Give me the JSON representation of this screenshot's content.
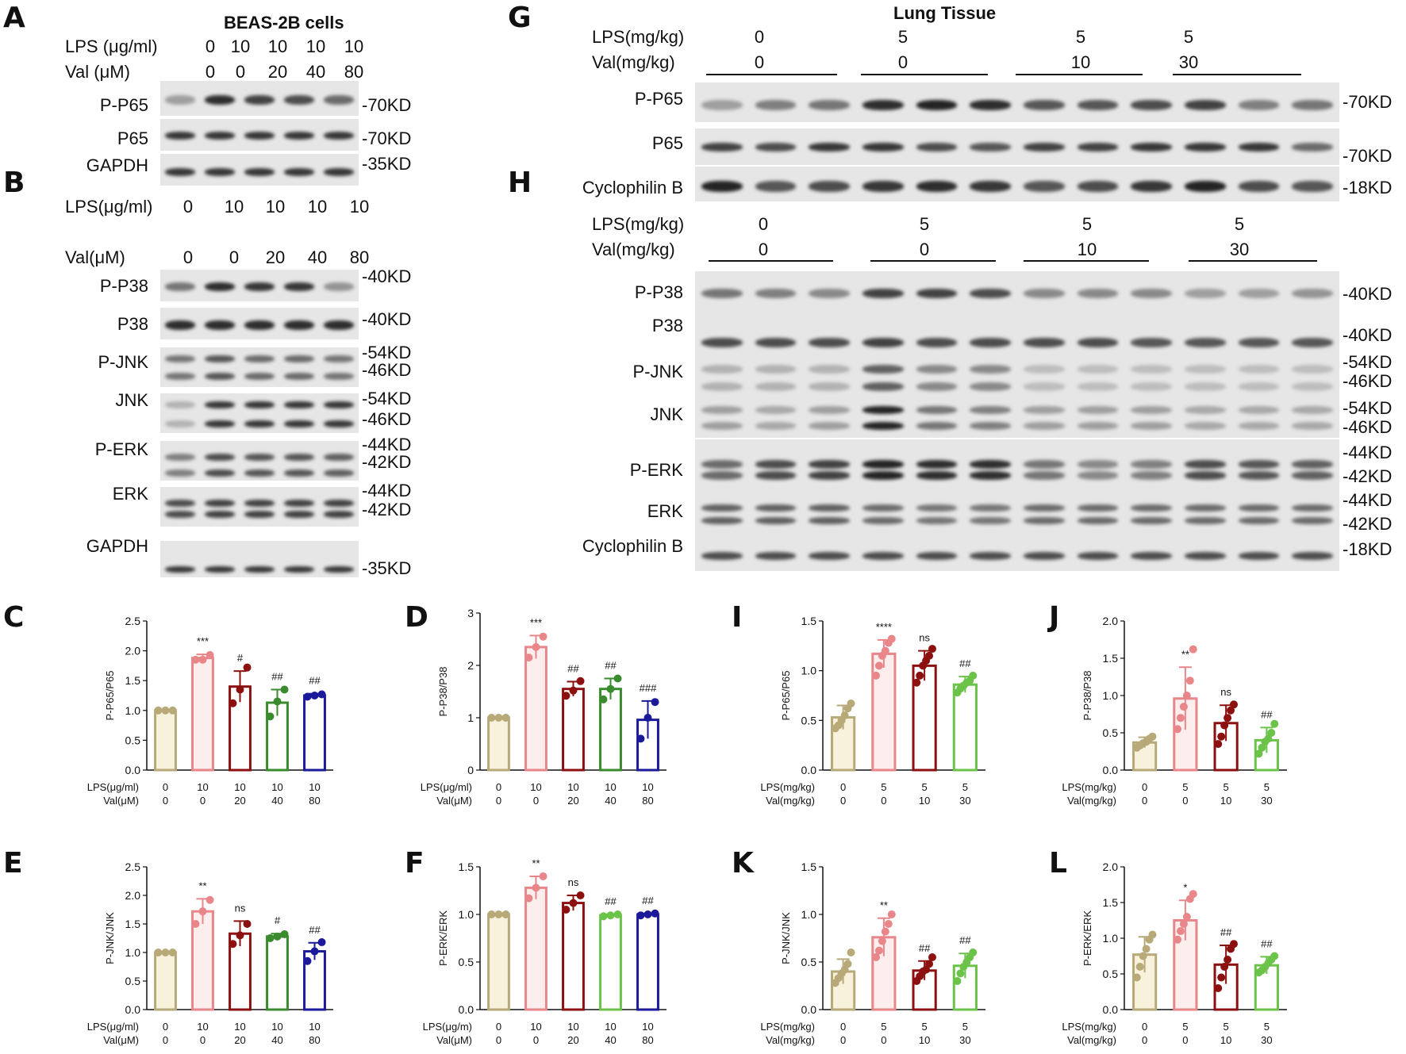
{
  "panels": {
    "A": "A",
    "B": "B",
    "C": "C",
    "D": "D",
    "E": "E",
    "F": "F",
    "G": "G",
    "H": "H",
    "I": "I",
    "J": "J",
    "K": "K",
    "L": "L"
  },
  "panel_A": {
    "header": "BEAS-2B cells",
    "lps_label": "LPS  (μg/ml)",
    "val_label": "Val  (μM)",
    "lps_values": [
      "0",
      "10",
      "10",
      "10",
      "10"
    ],
    "val_values": [
      "0",
      "0",
      "20",
      "40",
      "80"
    ],
    "blots": [
      {
        "label": "P-P65",
        "kd": [
          "-70KD"
        ]
      },
      {
        "label": "P65",
        "kd": [
          "-70KD"
        ]
      },
      {
        "label": "GAPDH",
        "kd": [
          "-35KD"
        ]
      }
    ]
  },
  "panel_B": {
    "lps_label": "LPS(μg/ml)",
    "val_label": "Val(μM)",
    "lps_values": [
      "0",
      "10",
      "10",
      "10",
      "10"
    ],
    "val_values": [
      "0",
      "0",
      "20",
      "40",
      "80"
    ],
    "blots": [
      {
        "label": "P-P38",
        "kd": [
          "-40KD"
        ]
      },
      {
        "label": "P38",
        "kd": [
          "-40KD"
        ]
      },
      {
        "label": "P-JNK",
        "kd": [
          "-54KD",
          "-46KD"
        ]
      },
      {
        "label": "JNK",
        "kd": [
          "-54KD",
          "-46KD"
        ]
      },
      {
        "label": "P-ERK",
        "kd": [
          "-44KD",
          "-42KD"
        ]
      },
      {
        "label": "ERK",
        "kd": [
          "-44KD",
          "-42KD"
        ]
      },
      {
        "label": "GAPDH",
        "kd": [
          "-35KD"
        ]
      }
    ]
  },
  "panel_G": {
    "header": "Lung Tissue",
    "lps_label": "LPS(mg/kg)",
    "val_label": "Val(mg/kg)",
    "lps_values": [
      "0",
      "5",
      "5",
      "5"
    ],
    "val_values": [
      "0",
      "0",
      "10",
      "30"
    ],
    "blots": [
      {
        "label": "P-P65",
        "kd": [
          "-70KD"
        ]
      },
      {
        "label": "P65",
        "kd": [
          "-70KD"
        ]
      },
      {
        "label": "Cyclophilin B",
        "kd": [
          "-18KD"
        ]
      }
    ]
  },
  "panel_H": {
    "lps_label": "LPS(mg/kg)",
    "val_label": "Val(mg/kg)",
    "lps_values": [
      "0",
      "5",
      "5",
      "5"
    ],
    "val_values": [
      "0",
      "0",
      "10",
      "30"
    ],
    "blots": [
      {
        "label": "P-P38",
        "kd": [
          "-40KD"
        ]
      },
      {
        "label": "P38",
        "kd": [
          "-40KD"
        ]
      },
      {
        "label": "P-JNK",
        "kd": [
          "-54KD",
          "-46KD"
        ]
      },
      {
        "label": "JNK",
        "kd": [
          "-54KD",
          "-46KD"
        ]
      },
      {
        "label": "P-ERK",
        "kd": [
          "-44KD",
          "-42KD"
        ]
      },
      {
        "label": "ERK",
        "kd": [
          "-44KD",
          "-42KD"
        ]
      },
      {
        "label": "Cyclophilin B",
        "kd": [
          "-18KD"
        ]
      }
    ]
  },
  "colors": {
    "control": "#b7a978",
    "control_fill": "#f8f1dc",
    "lps": "#e8868a",
    "lps_fill": "#fdeeee",
    "val_low": "#8c1010",
    "val_mid_cell": "#3a8a2e",
    "val_mid_tissue": "#6cc34a",
    "val_high_cell": "#1a1a9a",
    "val_high_tissue": "#6cc34a"
  },
  "chart_data": [
    {
      "id": "C",
      "type": "bar",
      "ylabel": "P-P65/P65",
      "ylim": [
        0,
        2.5
      ],
      "yticks": [
        "0.0",
        "0.5",
        "1.0",
        "1.5",
        "2.0",
        "2.5"
      ],
      "row_labels": [
        "LPS(μg/ml)",
        "Val(μM)"
      ],
      "lps": [
        "0",
        "10",
        "10",
        "10",
        "10"
      ],
      "val": [
        "0",
        "0",
        "20",
        "40",
        "80"
      ],
      "values": [
        1.0,
        1.88,
        1.4,
        1.13,
        1.25
      ],
      "errors": [
        0.0,
        0.06,
        0.26,
        0.22,
        0.03
      ],
      "points": [
        [
          1,
          1,
          1
        ],
        [
          1.85,
          1.85,
          1.93
        ],
        [
          1.12,
          1.35,
          1.72
        ],
        [
          0.9,
          1.15,
          1.35
        ],
        [
          1.23,
          1.25,
          1.27
        ]
      ],
      "annotations": [
        "",
        "***",
        "#",
        "##",
        "##"
      ]
    },
    {
      "id": "D",
      "type": "bar",
      "ylabel": "P-P38/P38",
      "ylim": [
        0,
        3
      ],
      "yticks": [
        "0",
        "1",
        "2",
        "3"
      ],
      "row_labels": [
        "LPS(μg/ml)",
        "Val(μM)"
      ],
      "lps": [
        "0",
        "10",
        "10",
        "10",
        "10"
      ],
      "val": [
        "0",
        "0",
        "20",
        "40",
        "80"
      ],
      "values": [
        1.0,
        2.35,
        1.55,
        1.55,
        0.96
      ],
      "errors": [
        0.0,
        0.22,
        0.14,
        0.2,
        0.36
      ],
      "points": [
        [
          1,
          1,
          1
        ],
        [
          2.15,
          2.35,
          2.55
        ],
        [
          1.42,
          1.52,
          1.7
        ],
        [
          1.35,
          1.55,
          1.75
        ],
        [
          0.6,
          1.0,
          1.3
        ]
      ],
      "annotations": [
        "",
        "***",
        "##",
        "##",
        "###"
      ]
    },
    {
      "id": "E",
      "type": "bar",
      "ylabel": "P-JNK/JNK",
      "ylim": [
        0,
        2.5
      ],
      "yticks": [
        "0.0",
        "0.5",
        "1.0",
        "1.5",
        "2.0",
        "2.5"
      ],
      "row_labels": [
        "LPS(μg/ml)",
        "Val(μM)"
      ],
      "lps": [
        "0",
        "10",
        "10",
        "10",
        "10"
      ],
      "val": [
        "0",
        "0",
        "20",
        "40",
        "80"
      ],
      "values": [
        1.0,
        1.72,
        1.33,
        1.28,
        1.02
      ],
      "errors": [
        0.0,
        0.22,
        0.22,
        0.05,
        0.15
      ],
      "points": [
        [
          1,
          1,
          1
        ],
        [
          1.5,
          1.72,
          1.92
        ],
        [
          1.15,
          1.3,
          1.5
        ],
        [
          1.25,
          1.28,
          1.32
        ],
        [
          0.85,
          1.02,
          1.18
        ]
      ],
      "annotations": [
        "",
        "**",
        "ns",
        "#",
        "##"
      ]
    },
    {
      "id": "F",
      "type": "bar",
      "ylabel": "P-ERK/ERK",
      "ylim": [
        0,
        1.5
      ],
      "yticks": [
        "0.0",
        "0.5",
        "1.0",
        "1.5"
      ],
      "row_labels": [
        "LPS(μg/m)",
        "Val(μM)"
      ],
      "lps": [
        "0",
        "10",
        "10",
        "10",
        "10"
      ],
      "val": [
        "0",
        "0",
        "20",
        "40",
        "80"
      ],
      "values": [
        1.0,
        1.28,
        1.12,
        0.99,
        1.0
      ],
      "errors": [
        0.0,
        0.12,
        0.08,
        0.01,
        0.01
      ],
      "points": [
        [
          1,
          1,
          1
        ],
        [
          1.17,
          1.28,
          1.4
        ],
        [
          1.05,
          1.12,
          1.2
        ],
        [
          0.98,
          0.99,
          1.0
        ],
        [
          0.99,
          1.0,
          1.01
        ]
      ],
      "annotations": [
        "",
        "**",
        "ns",
        "##",
        "##"
      ]
    },
    {
      "id": "I",
      "type": "bar",
      "ylabel": "P-P65/P65",
      "ylim": [
        0,
        1.5
      ],
      "yticks": [
        "0.0",
        "0.5",
        "1.0",
        "1.5"
      ],
      "row_labels": [
        "LPS(mg/kg)",
        "Val(mg/kg)"
      ],
      "lps": [
        "0",
        "5",
        "5",
        "5"
      ],
      "val": [
        "0",
        "0",
        "10",
        "30"
      ],
      "values": [
        0.53,
        1.17,
        1.05,
        0.86
      ],
      "errors": [
        0.12,
        0.14,
        0.15,
        0.08
      ],
      "points": [
        [
          0.42,
          0.45,
          0.5,
          0.55,
          0.62,
          0.67
        ],
        [
          0.95,
          1.05,
          1.15,
          1.2,
          1.28,
          1.32
        ],
        [
          0.88,
          0.95,
          1.05,
          1.1,
          1.15,
          1.22
        ],
        [
          0.78,
          0.82,
          0.85,
          0.88,
          0.9,
          0.95
        ]
      ],
      "annotations": [
        "",
        "****",
        "ns",
        "##"
      ]
    },
    {
      "id": "J",
      "type": "bar",
      "ylabel": "P-P38/P38",
      "ylim": [
        0,
        2.0
      ],
      "yticks": [
        "0.0",
        "0.5",
        "1.0",
        "1.5",
        "2.0"
      ],
      "row_labels": [
        "LPS(mg/kg)",
        "Val(mg/kg)"
      ],
      "lps": [
        "0",
        "5",
        "5",
        "5"
      ],
      "val": [
        "0",
        "0",
        "10",
        "30"
      ],
      "values": [
        0.37,
        0.96,
        0.63,
        0.4
      ],
      "errors": [
        0.07,
        0.42,
        0.24,
        0.17
      ],
      "points": [
        [
          0.3,
          0.33,
          0.36,
          0.38,
          0.42,
          0.45
        ],
        [
          0.55,
          0.7,
          0.85,
          1.0,
          1.2,
          1.62
        ],
        [
          0.35,
          0.45,
          0.6,
          0.7,
          0.8,
          0.88
        ],
        [
          0.22,
          0.3,
          0.38,
          0.42,
          0.5,
          0.62
        ]
      ],
      "annotations": [
        "",
        "**",
        "ns",
        "##"
      ]
    },
    {
      "id": "K",
      "type": "bar",
      "ylabel": "P-JNK/JNK",
      "ylim": [
        0,
        1.5
      ],
      "yticks": [
        "0.0",
        "0.5",
        "1.0",
        "1.5"
      ],
      "row_labels": [
        "LPS(mg/kg)",
        "Val(mg/kg)"
      ],
      "lps": [
        "0",
        "5",
        "5",
        "5"
      ],
      "val": [
        "0",
        "0",
        "10",
        "30"
      ],
      "values": [
        0.4,
        0.76,
        0.41,
        0.46
      ],
      "errors": [
        0.13,
        0.2,
        0.1,
        0.13
      ],
      "points": [
        [
          0.28,
          0.33,
          0.38,
          0.42,
          0.48,
          0.6
        ],
        [
          0.55,
          0.62,
          0.72,
          0.82,
          0.9,
          1.0
        ],
        [
          0.3,
          0.35,
          0.4,
          0.42,
          0.48,
          0.55
        ],
        [
          0.3,
          0.38,
          0.45,
          0.5,
          0.55,
          0.6
        ]
      ],
      "annotations": [
        "",
        "**",
        "##",
        "##"
      ]
    },
    {
      "id": "L",
      "type": "bar",
      "ylabel": "P-ERK/ERK",
      "ylim": [
        0,
        2.0
      ],
      "yticks": [
        "0.0",
        "0.5",
        "1.0",
        "1.5",
        "2.0"
      ],
      "row_labels": [
        "LPS(mg/kg)",
        "Val(mg/kg)"
      ],
      "lps": [
        "0",
        "5",
        "5",
        "5"
      ],
      "val": [
        "0",
        "0",
        "10",
        "30"
      ],
      "values": [
        0.77,
        1.25,
        0.63,
        0.62
      ],
      "errors": [
        0.25,
        0.28,
        0.27,
        0.12
      ],
      "points": [
        [
          0.45,
          0.6,
          0.75,
          0.85,
          0.98,
          1.05
        ],
        [
          0.98,
          1.1,
          1.2,
          1.3,
          1.55,
          1.62
        ],
        [
          0.3,
          0.45,
          0.6,
          0.7,
          0.85,
          0.92
        ],
        [
          0.52,
          0.55,
          0.6,
          0.65,
          0.7,
          0.75
        ]
      ],
      "annotations": [
        "",
        "*",
        "##",
        "##"
      ]
    }
  ]
}
